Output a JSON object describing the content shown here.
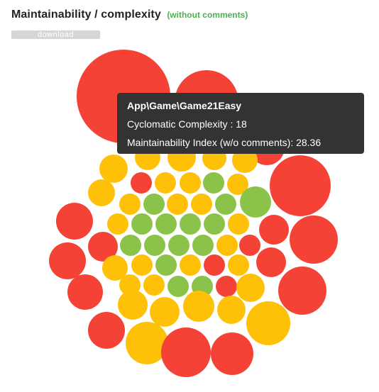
{
  "header": {
    "title": "Maintainability / complexity",
    "subtitle": "(without comments)"
  },
  "download": {
    "label": "download"
  },
  "colors": {
    "high": "#f44336",
    "medium": "#ffc107",
    "low": "#8bc34a"
  },
  "tooltip": {
    "name": "App\\Game\\Game21Easy",
    "complexity_label": "Cyclomatic Complexity",
    "complexity_value": "18",
    "mi_label": "Maintainability Index (w/o comments)",
    "mi_value": "28.36"
  }
}
